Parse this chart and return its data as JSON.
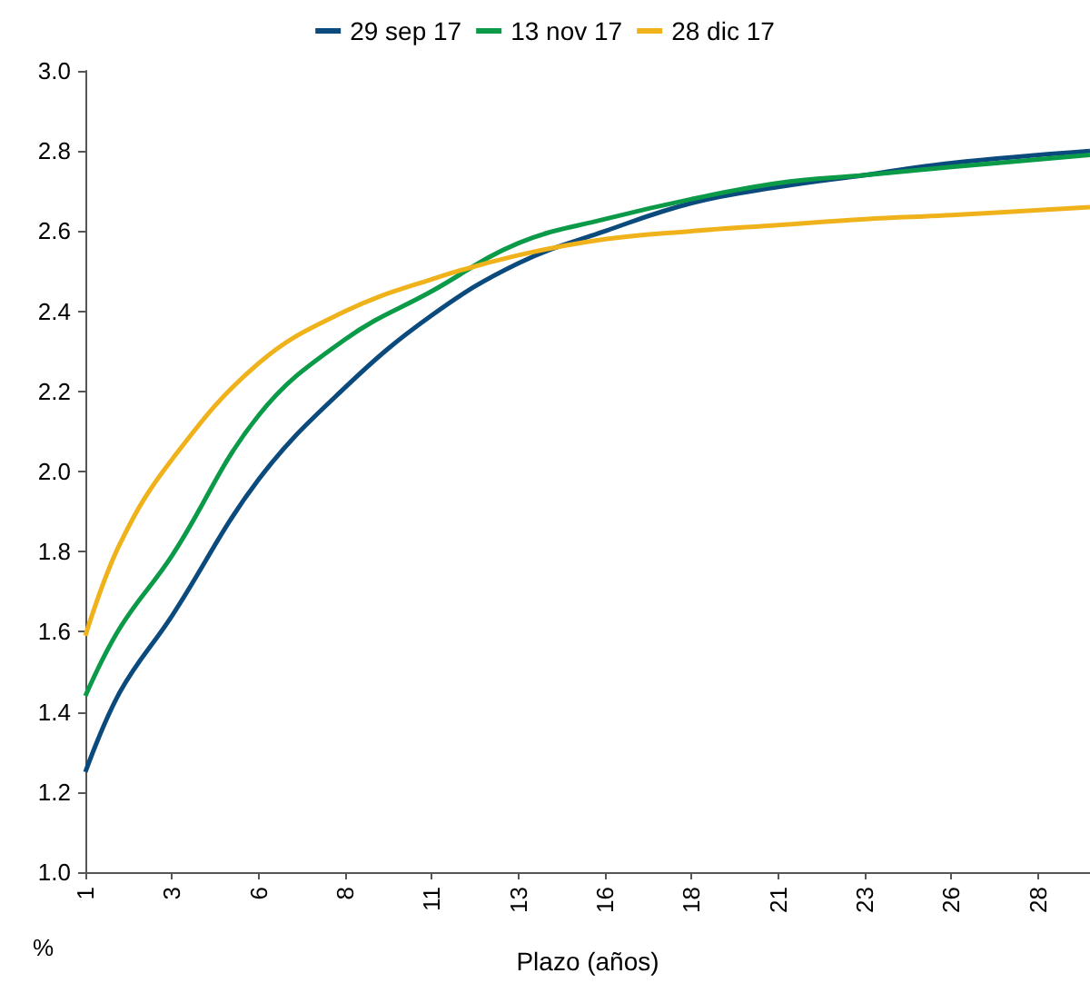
{
  "chart_data": {
    "type": "line",
    "xlabel": "Plazo (años)",
    "ylabel": "%",
    "xlim": [
      1,
      30
    ],
    "ylim": [
      1.0,
      3.0
    ],
    "xticks": [
      {
        "value": 1,
        "label": "1"
      },
      {
        "value": 3.5,
        "label": "3"
      },
      {
        "value": 6,
        "label": "6"
      },
      {
        "value": 8.5,
        "label": "8"
      },
      {
        "value": 11,
        "label": "11"
      },
      {
        "value": 13.5,
        "label": "13"
      },
      {
        "value": 16,
        "label": "16"
      },
      {
        "value": 18.5,
        "label": "18"
      },
      {
        "value": 21,
        "label": "21"
      },
      {
        "value": 23.5,
        "label": "23"
      },
      {
        "value": 26,
        "label": "26"
      },
      {
        "value": 28.5,
        "label": "28"
      }
    ],
    "yticks": [
      {
        "value": 1.0,
        "label": "1.0"
      },
      {
        "value": 1.2,
        "label": "1.2"
      },
      {
        "value": 1.4,
        "label": "1.4"
      },
      {
        "value": 1.6,
        "label": "1.6"
      },
      {
        "value": 1.8,
        "label": "1.8"
      },
      {
        "value": 2.0,
        "label": "2.0"
      },
      {
        "value": 2.2,
        "label": "2.2"
      },
      {
        "value": 2.4,
        "label": "2.4"
      },
      {
        "value": 2.6,
        "label": "2.6"
      },
      {
        "value": 2.8,
        "label": "2.8"
      },
      {
        "value": 3.0,
        "label": "3.0"
      }
    ],
    "x": [
      1,
      2,
      3.5,
      6,
      8.5,
      11,
      13.5,
      16,
      18.5,
      21,
      23.5,
      26,
      30
    ],
    "series": [
      {
        "name": "29 sep 17",
        "color": "#0b4a7c",
        "values": [
          1.25,
          1.45,
          1.64,
          1.98,
          2.21,
          2.39,
          2.52,
          2.6,
          2.67,
          2.71,
          2.74,
          2.77,
          2.8
        ]
      },
      {
        "name": "13 nov 17",
        "color": "#0a9a48",
        "values": [
          1.44,
          1.61,
          1.79,
          2.14,
          2.33,
          2.45,
          2.57,
          2.63,
          2.68,
          2.72,
          2.74,
          2.76,
          2.79
        ]
      },
      {
        "name": "28 dic 17",
        "color": "#f0b21a",
        "values": [
          1.59,
          1.82,
          2.03,
          2.27,
          2.4,
          2.48,
          2.54,
          2.58,
          2.6,
          2.615,
          2.63,
          2.64,
          2.66
        ]
      }
    ],
    "grid": false,
    "legend": "top",
    "marker": "none",
    "line_style": "solid"
  }
}
